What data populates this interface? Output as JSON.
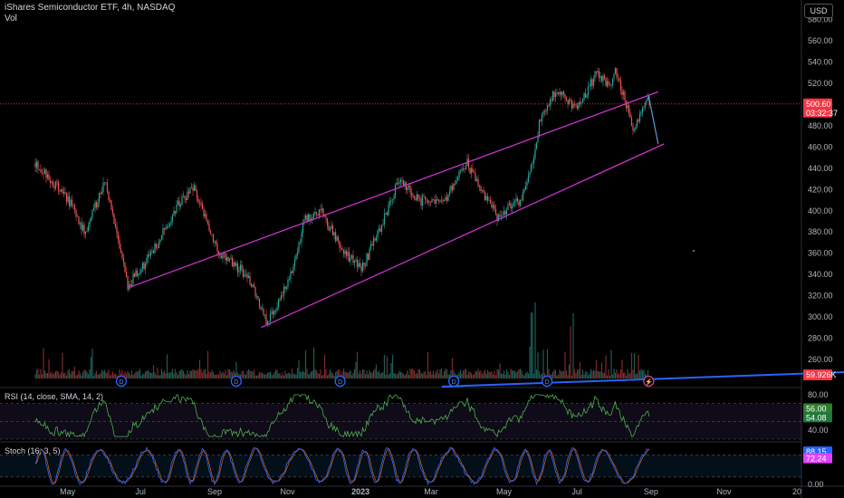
{
  "header": {
    "symbol_line": "iShares Semiconductor ETF, 4h, NASDAQ",
    "vol_label": "Vol",
    "currency": "USD"
  },
  "colors": {
    "background": "#000000",
    "channel": "#cc33cc",
    "projection": "#2962ff",
    "up": "#26a69a",
    "down": "#ef5350",
    "price_badge": "#f23645",
    "volume_badge": "#f23645",
    "rsi_line": "#4caf50",
    "stoch_k": "#2962ff",
    "stoch_d": "#ff6d00",
    "event_icon": "#2962ff"
  },
  "chart_data": [
    {
      "type": "candlestick",
      "name": "price",
      "x_axis_labels": [
        "May",
        "Jul",
        "Sep",
        "Nov",
        "2023",
        "Mar",
        "May",
        "Jul",
        "Sep",
        "Nov",
        "20"
      ],
      "y_tick_labels": [
        260,
        280,
        300,
        320,
        340,
        360,
        380,
        400,
        420,
        440,
        460,
        480,
        500,
        520,
        540,
        560,
        580
      ],
      "ylim": [
        242,
        590
      ],
      "last_price": "500.60",
      "countdown": "03:32:37",
      "key_points": [
        {
          "date": "2022-04-04",
          "price": 445
        },
        {
          "date": "2022-05-02",
          "price": 410
        },
        {
          "date": "2022-05-16",
          "price": 378
        },
        {
          "date": "2022-06-01",
          "price": 430
        },
        {
          "date": "2022-06-20",
          "price": 330
        },
        {
          "date": "2022-07-11",
          "price": 360
        },
        {
          "date": "2022-08-01",
          "price": 405
        },
        {
          "date": "2022-08-15",
          "price": 420
        },
        {
          "date": "2022-09-05",
          "price": 360
        },
        {
          "date": "2022-09-28",
          "price": 340
        },
        {
          "date": "2022-10-14",
          "price": 295
        },
        {
          "date": "2022-11-01",
          "price": 330
        },
        {
          "date": "2022-11-15",
          "price": 390
        },
        {
          "date": "2022-11-30",
          "price": 398
        },
        {
          "date": "2022-12-15",
          "price": 365
        },
        {
          "date": "2023-01-02",
          "price": 345
        },
        {
          "date": "2023-01-20",
          "price": 390
        },
        {
          "date": "2023-02-02",
          "price": 430
        },
        {
          "date": "2023-02-20",
          "price": 410
        },
        {
          "date": "2023-03-10",
          "price": 405
        },
        {
          "date": "2023-03-31",
          "price": 445
        },
        {
          "date": "2023-04-25",
          "price": 395
        },
        {
          "date": "2023-05-15",
          "price": 410
        },
        {
          "date": "2023-05-24",
          "price": 440
        },
        {
          "date": "2023-06-01",
          "price": 490
        },
        {
          "date": "2023-06-15",
          "price": 515
        },
        {
          "date": "2023-06-30",
          "price": 495
        },
        {
          "date": "2023-07-18",
          "price": 530
        },
        {
          "date": "2023-07-28",
          "price": 515
        },
        {
          "date": "2023-08-02",
          "price": 535
        },
        {
          "date": "2023-08-18",
          "price": 475
        },
        {
          "date": "2023-08-28",
          "price": 505
        },
        {
          "date": "2023-08-31",
          "price": 500.6
        }
      ],
      "channel_upper": [
        {
          "date": "2022-06-22",
          "price": 328
        },
        {
          "date": "2023-09-07",
          "price": 512
        }
      ],
      "channel_lower": [
        {
          "date": "2022-10-10",
          "price": 290
        },
        {
          "date": "2023-09-12",
          "price": 463
        }
      ],
      "projection": [
        {
          "date": "2023-08-30",
          "price": 508
        },
        {
          "date": "2023-09-07",
          "price": 463
        }
      ]
    },
    {
      "type": "bar",
      "name": "Vol",
      "last_value": "59.926K",
      "events": [
        {
          "date": "2022-06-15",
          "icon": "dividend-icon",
          "label": "D"
        },
        {
          "date": "2022-09-19",
          "icon": "dividend-icon",
          "label": "D"
        },
        {
          "date": "2022-12-15",
          "icon": "dividend-icon",
          "label": "D"
        },
        {
          "date": "2023-03-20",
          "icon": "dividend-icon",
          "label": "D"
        },
        {
          "date": "2023-06-06",
          "icon": "dividend-icon",
          "label": "D"
        },
        {
          "date": "2023-08-30",
          "icon": "earnings-icon",
          "label": "⚡"
        }
      ]
    },
    {
      "type": "line",
      "name": "RSI",
      "legend": "RSI (14, close, SMA, 14, 2)",
      "y_tick_labels": [
        "80.00",
        "60.00",
        "40.00"
      ],
      "ylim": [
        30,
        85
      ],
      "levels": [
        70,
        50,
        30
      ],
      "last_values": [
        "54.08",
        "56.00"
      ]
    },
    {
      "type": "line",
      "name": "Stoch",
      "legend": "Stoch (16, 3, 5)",
      "y_tick_labels": [
        "0.00"
      ],
      "ylim": [
        -5,
        108
      ],
      "levels": [
        80,
        20
      ],
      "last_values": [
        "88.15",
        "72.24"
      ]
    }
  ]
}
